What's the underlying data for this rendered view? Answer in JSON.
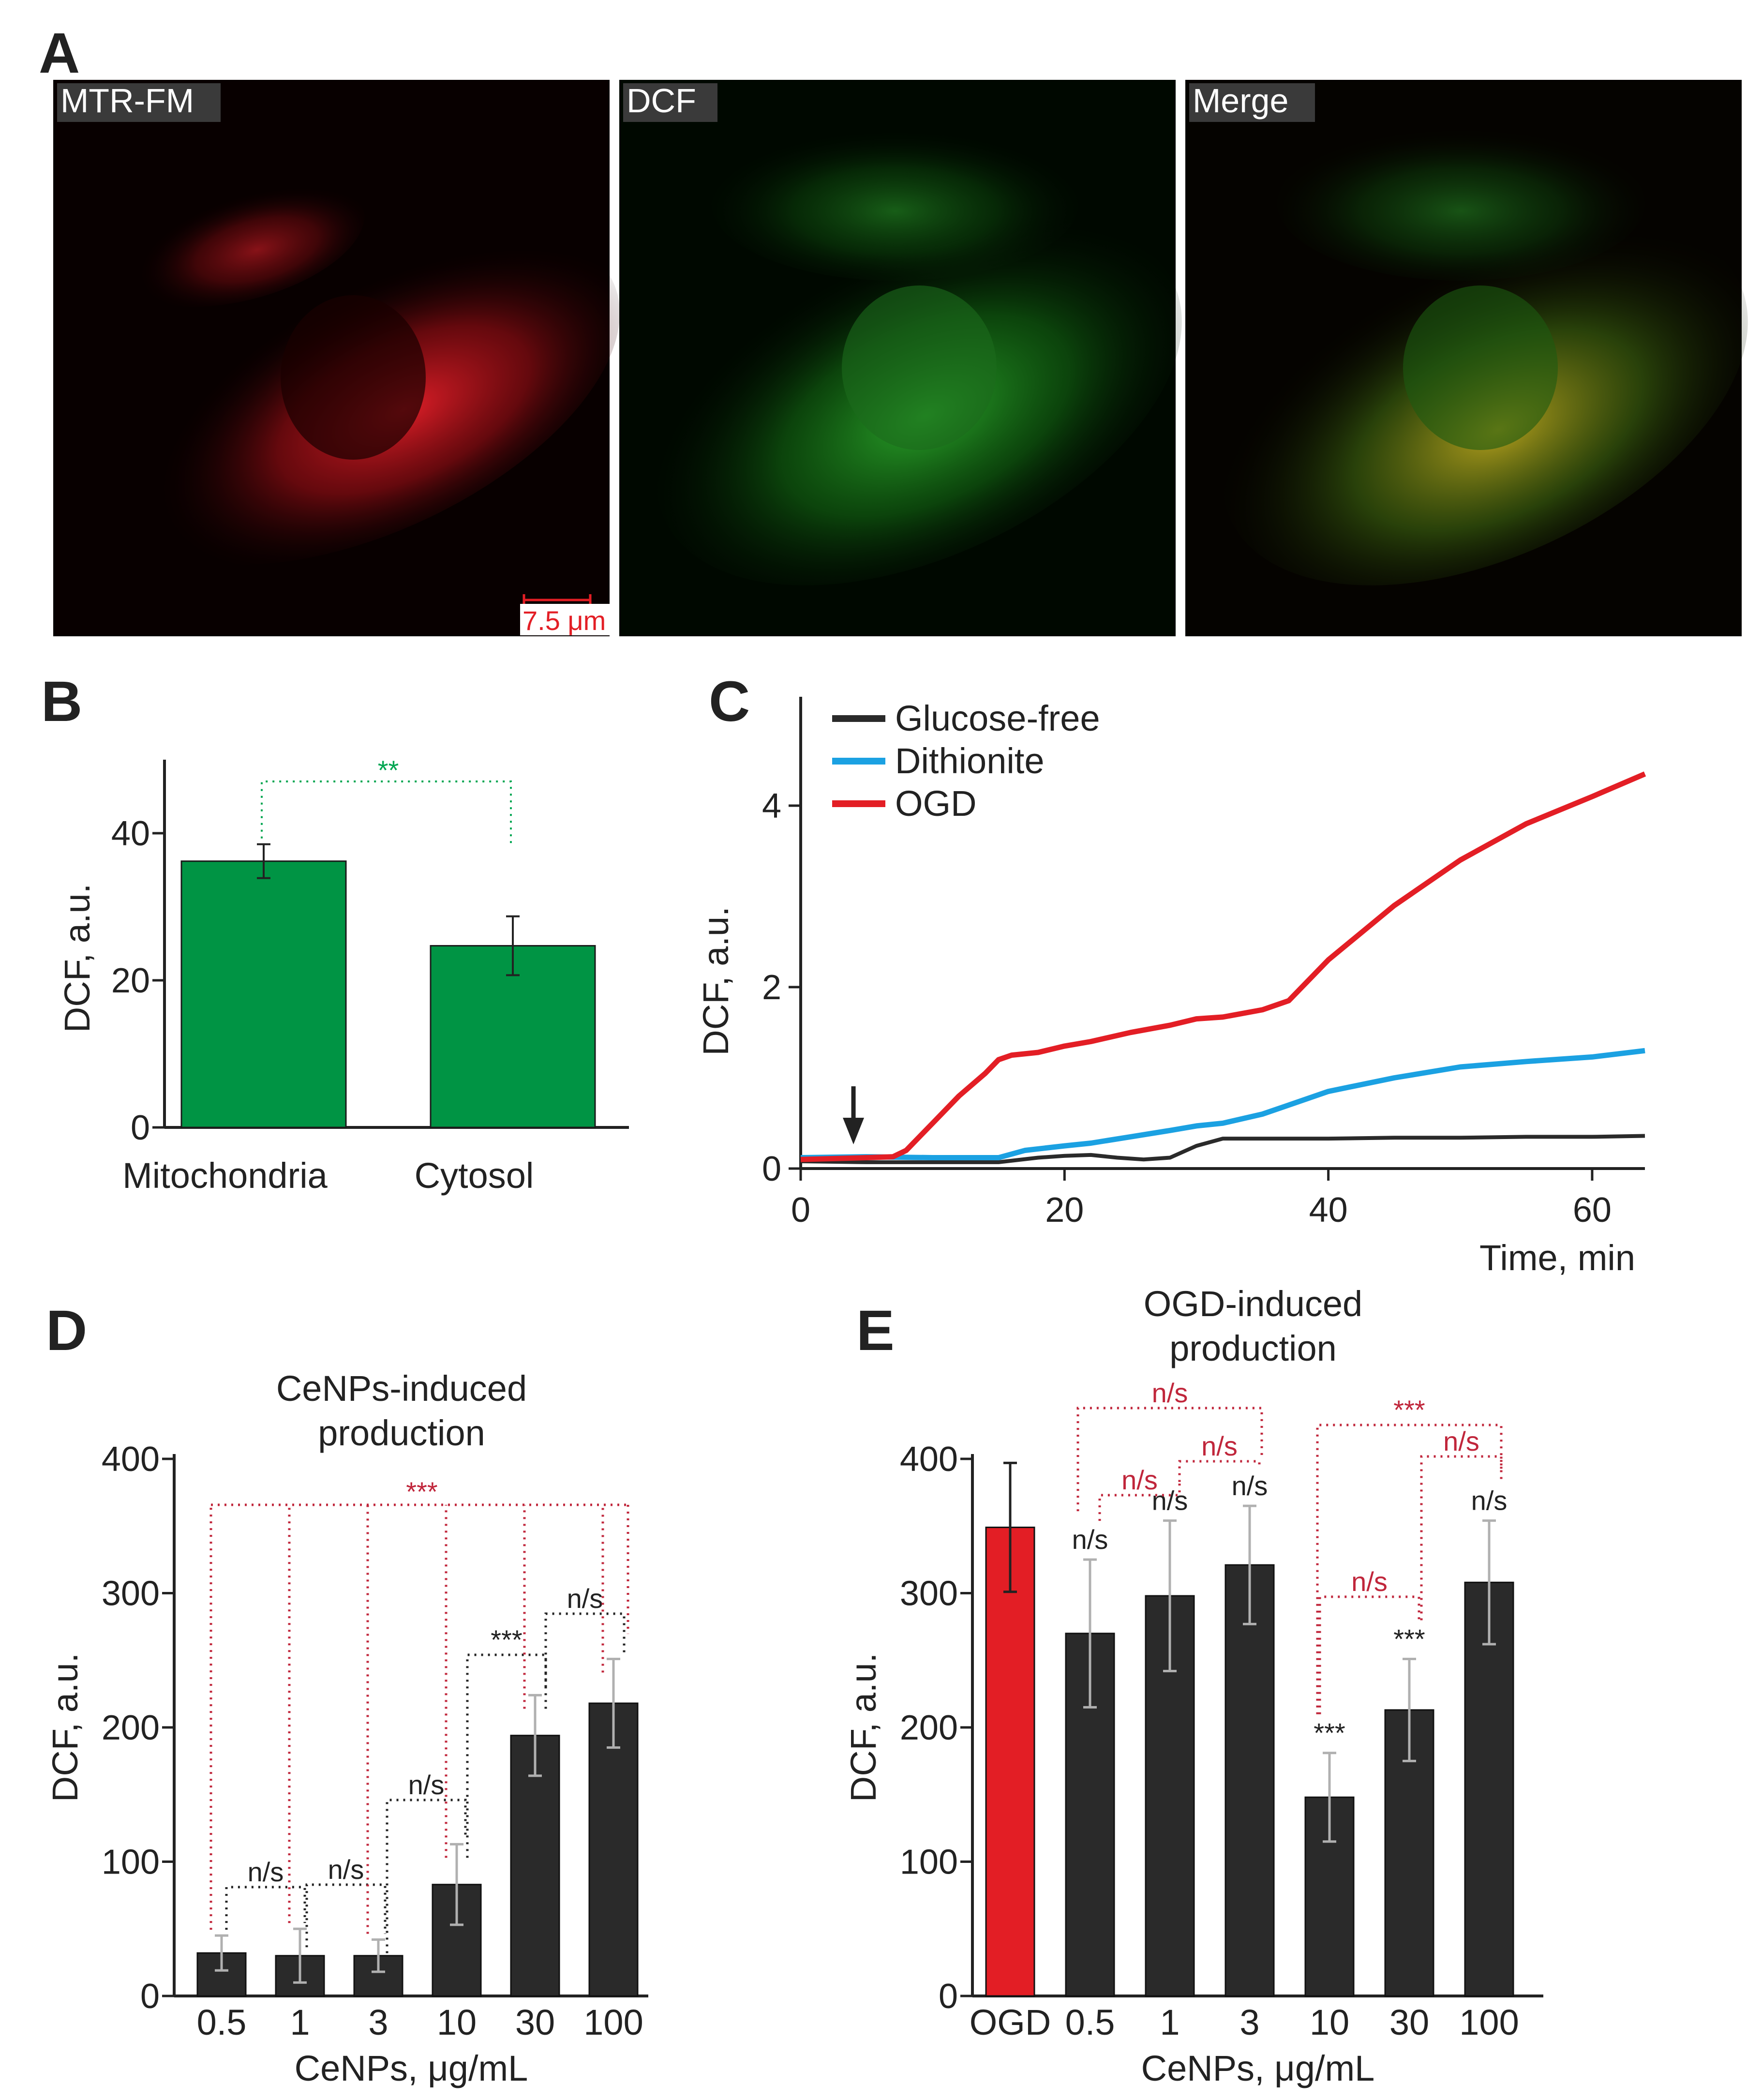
{
  "panels": {
    "A": "A",
    "B": "B",
    "C": "C",
    "D": "D",
    "E": "E"
  },
  "images": [
    {
      "label": "MTR-FM",
      "channel": "red"
    },
    {
      "label": "DCF",
      "channel": "green"
    },
    {
      "label": "Merge",
      "channel": "merge"
    }
  ],
  "scale_bar": "7.5 μm",
  "colors": {
    "red": "#e31e25",
    "green": "#009444",
    "blue": "#1ba1e2",
    "dark": "#2a2a2a",
    "sig_red": "#c0263b",
    "sig_green": "#00a651",
    "err_grey": "#b0b0b0"
  },
  "chart_data": [
    {
      "panel": "B",
      "type": "bar",
      "categories": [
        "Mitochondria",
        "Cytosol"
      ],
      "values": [
        36.2,
        24.7
      ],
      "errors": [
        2.3,
        4.0
      ],
      "ylabel": "DCF, a.u.",
      "ylim": [
        0,
        50
      ],
      "yticks": [
        0,
        20,
        40
      ],
      "significance": [
        {
          "pair": [
            0,
            1
          ],
          "label": "**"
        }
      ]
    },
    {
      "panel": "C",
      "type": "line",
      "xlabel": "Time, min",
      "ylabel": "DCF, a.u.",
      "xlim": [
        0,
        64
      ],
      "ylim": [
        0,
        5.2
      ],
      "xticks": [
        0,
        20,
        40,
        60
      ],
      "yticks": [
        0,
        2,
        4
      ],
      "legend_position": "top-left",
      "arrow_at": 4,
      "series": [
        {
          "name": "Glucose-free",
          "color": "#2a2a2a",
          "x": [
            0,
            5,
            10,
            15,
            18,
            20,
            22,
            24,
            26,
            28,
            30,
            32,
            36,
            40,
            45,
            50,
            55,
            60,
            64
          ],
          "y": [
            0.08,
            0.07,
            0.07,
            0.07,
            0.12,
            0.14,
            0.15,
            0.12,
            0.1,
            0.12,
            0.25,
            0.33,
            0.33,
            0.33,
            0.34,
            0.34,
            0.35,
            0.35,
            0.36
          ]
        },
        {
          "name": "Dithionite",
          "color": "#1ba1e2",
          "x": [
            0,
            5,
            10,
            15,
            17,
            20,
            22,
            25,
            28,
            30,
            32,
            35,
            37,
            40,
            45,
            50,
            55,
            60,
            64
          ],
          "y": [
            0.12,
            0.13,
            0.12,
            0.12,
            0.2,
            0.25,
            0.28,
            0.35,
            0.42,
            0.47,
            0.5,
            0.6,
            0.7,
            0.85,
            1.0,
            1.12,
            1.18,
            1.23,
            1.3
          ]
        },
        {
          "name": "OGD",
          "color": "#e31e25",
          "x": [
            0,
            5,
            7,
            8,
            10,
            12,
            14,
            15,
            16,
            18,
            20,
            22,
            25,
            28,
            30,
            32,
            35,
            37,
            40,
            45,
            50,
            55,
            60,
            64
          ],
          "y": [
            0.1,
            0.12,
            0.13,
            0.2,
            0.5,
            0.8,
            1.05,
            1.2,
            1.25,
            1.28,
            1.35,
            1.4,
            1.5,
            1.58,
            1.65,
            1.67,
            1.75,
            1.85,
            2.3,
            2.9,
            3.4,
            3.8,
            4.1,
            4.35
          ]
        }
      ]
    },
    {
      "panel": "D",
      "type": "bar",
      "title": "CeNPs-induced production",
      "title_lines": [
        "CeNPs-induced",
        "production"
      ],
      "categories": [
        "0.5",
        "1",
        "3",
        "10",
        "30",
        "100"
      ],
      "values": [
        32,
        30,
        30,
        83,
        194,
        218
      ],
      "errors": [
        13,
        20,
        12,
        30,
        30,
        33
      ],
      "xlabel": "CeNPs, μg/mL",
      "ylabel": "DCF, a.u.",
      "ylim": [
        0,
        400
      ],
      "yticks": [
        0,
        100,
        200,
        300,
        400
      ],
      "significance": [
        {
          "pair": [
            0,
            1
          ],
          "label": "n/s"
        },
        {
          "pair": [
            1,
            2
          ],
          "label": "n/s"
        },
        {
          "pair": [
            2,
            3
          ],
          "label": "n/s"
        },
        {
          "pair": [
            3,
            4
          ],
          "label": "***"
        },
        {
          "pair": [
            4,
            5
          ],
          "label": "n/s"
        },
        {
          "group": "all",
          "label": "***"
        }
      ]
    },
    {
      "panel": "E",
      "type": "bar",
      "title": "OGD-induced production",
      "title_lines": [
        "OGD-induced",
        "production"
      ],
      "categories": [
        "OGD",
        "0.5",
        "1",
        "3",
        "10",
        "30",
        "100"
      ],
      "values": [
        349,
        270,
        298,
        321,
        148,
        213,
        308
      ],
      "errors": [
        48,
        55,
        56,
        44,
        33,
        38,
        46
      ],
      "bar_labels": [
        "",
        "n/s",
        "n/s",
        "n/s",
        "***",
        "***",
        "n/s"
      ],
      "xlabel": "CeNPs, μg/mL",
      "ylabel": "DCF, a.u.",
      "ylim": [
        0,
        400
      ],
      "yticks": [
        0,
        100,
        200,
        300,
        400
      ],
      "significance": [
        {
          "pair": [
            1,
            2
          ],
          "label": "n/s"
        },
        {
          "pair": [
            2,
            3
          ],
          "label": "n/s"
        },
        {
          "pair": [
            1,
            3
          ],
          "label": "n/s"
        },
        {
          "pair": [
            4,
            5
          ],
          "label": "n/s"
        },
        {
          "pair": [
            5,
            6
          ],
          "label": "n/s"
        },
        {
          "pair": [
            4,
            6
          ],
          "label": "***"
        }
      ]
    }
  ]
}
